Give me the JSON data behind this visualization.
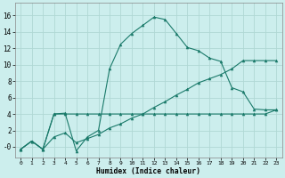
{
  "xlabel": "Humidex (Indice chaleur)",
  "bg_color": "#cceeed",
  "grid_color": "#b0d8d4",
  "line_color": "#1a7a6a",
  "xlim": [
    -0.5,
    23.5
  ],
  "ylim": [
    -1.3,
    17.5
  ],
  "xticks": [
    0,
    1,
    2,
    3,
    4,
    5,
    6,
    7,
    8,
    9,
    10,
    11,
    12,
    13,
    14,
    15,
    16,
    17,
    18,
    19,
    20,
    21,
    22,
    23
  ],
  "yticks": [
    0,
    2,
    4,
    6,
    8,
    10,
    12,
    14,
    16
  ],
  "ytick_labels": [
    "-0",
    "2",
    "4",
    "6",
    "8",
    "10",
    "12",
    "14",
    "16"
  ],
  "line1_x": [
    0,
    1,
    2,
    3,
    4,
    5,
    6,
    7,
    8,
    9,
    10,
    11,
    12,
    13,
    14,
    15,
    16,
    17,
    18,
    19,
    20,
    21,
    22,
    23
  ],
  "line1_y": [
    -0.3,
    0.7,
    -0.3,
    4.0,
    4.0,
    4.0,
    4.0,
    4.0,
    4.0,
    4.0,
    4.0,
    4.0,
    4.0,
    4.0,
    4.0,
    4.0,
    4.0,
    4.0,
    4.0,
    4.0,
    4.0,
    4.0,
    4.0,
    4.5
  ],
  "line2_x": [
    0,
    1,
    2,
    3,
    4,
    5,
    6,
    7,
    8,
    9,
    10,
    11,
    12,
    13,
    14,
    15,
    16,
    17,
    18,
    19,
    20,
    21,
    22,
    23
  ],
  "line2_y": [
    -0.3,
    0.7,
    -0.3,
    1.2,
    1.7,
    0.5,
    1.0,
    1.5,
    2.3,
    2.8,
    3.5,
    4.0,
    4.8,
    5.5,
    6.3,
    7.0,
    7.8,
    8.3,
    8.8,
    9.5,
    10.5,
    10.5,
    10.5,
    10.5
  ],
  "line3_x": [
    0,
    1,
    2,
    3,
    4,
    5,
    6,
    7,
    8,
    9,
    10,
    11,
    12,
    13,
    14,
    15,
    16,
    17,
    18,
    19,
    20,
    21,
    22,
    23
  ],
  "line3_y": [
    -0.3,
    0.7,
    -0.3,
    4.0,
    4.1,
    -0.5,
    1.2,
    2.0,
    9.5,
    12.5,
    13.8,
    14.8,
    15.8,
    15.5,
    13.8,
    12.1,
    11.7,
    10.8,
    10.4,
    7.2,
    6.7,
    4.6,
    4.5,
    4.5
  ]
}
